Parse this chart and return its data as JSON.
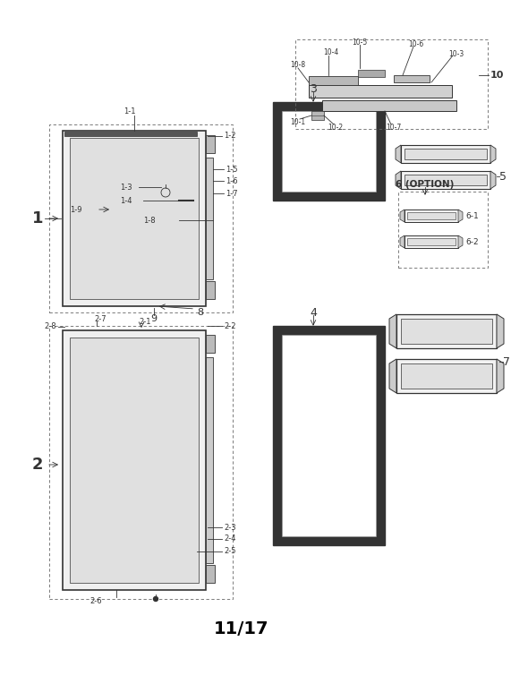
{
  "bg_color": "#ffffff",
  "title_text": "11/17",
  "lc": "#333333",
  "fc_door": "#f0f0f0",
  "fc_inner": "#e8e8e8",
  "fc_shelf": "#d8d8d8",
  "fc_white": "#ffffff"
}
